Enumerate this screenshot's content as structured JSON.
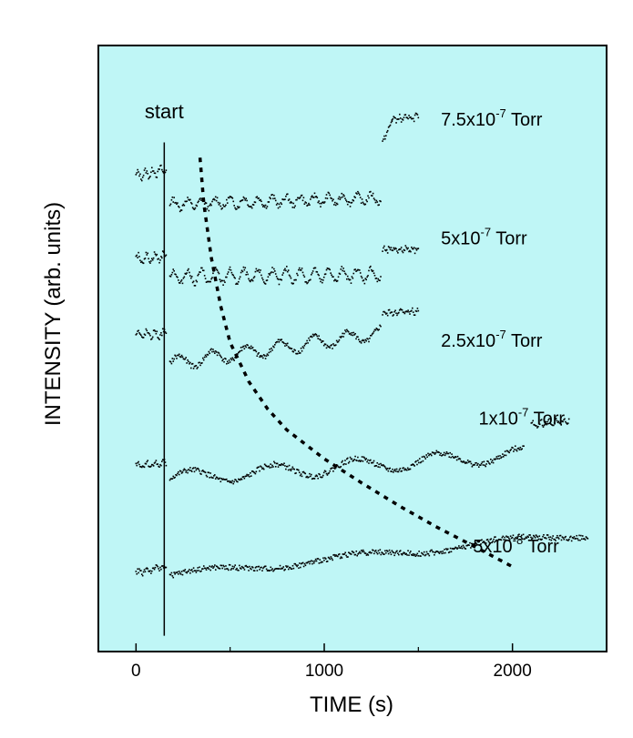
{
  "chart_data": {
    "type": "scatter",
    "title": "",
    "xlabel": "TIME (s)",
    "ylabel": "INTENSITY (arb. units)",
    "xlim": [
      -200,
      2500
    ],
    "ylim": [
      0,
      100
    ],
    "xticks": [
      0,
      1000,
      2000
    ],
    "y_tick_labels": false,
    "grid": false,
    "background_color": "#bff6f6",
    "start_annotation": {
      "label": "start",
      "x": 150
    },
    "decay_curve": {
      "style": "dashed",
      "points": [
        [
          340,
          81.5
        ],
        [
          360,
          74
        ],
        [
          400,
          65
        ],
        [
          450,
          57
        ],
        [
          500,
          51
        ],
        [
          600,
          44.5
        ],
        [
          700,
          40
        ],
        [
          800,
          36.6
        ],
        [
          1000,
          31.8
        ],
        [
          1200,
          27.8
        ],
        [
          1400,
          24
        ],
        [
          1600,
          20.5
        ],
        [
          1800,
          17.3
        ],
        [
          2000,
          14
        ]
      ]
    },
    "series": [
      {
        "label": {
          "mantissa": "7.5x10",
          "exponent": "-7",
          "unit": " Torr"
        },
        "segments": [
          {
            "x": [
              0,
              160
            ],
            "y": [
              78.5,
              79.5
            ],
            "osc_amp": 0.6,
            "osc_period": 40
          },
          {
            "x": [
              180,
              1300
            ],
            "y": [
              73.8,
              74.8
            ],
            "osc_amp": 0.8,
            "osc_period": 75
          },
          {
            "x": [
              1310,
              1360
            ],
            "y": [
              84,
              87.5
            ]
          },
          {
            "x": [
              1360,
              1500
            ],
            "y": [
              87.8,
              88.2
            ],
            "osc_amp": 0.4,
            "osc_period": 30
          }
        ]
      },
      {
        "label": {
          "mantissa": "5x10",
          "exponent": "-7",
          "unit": " Torr"
        },
        "segments": [
          {
            "x": [
              0,
              160
            ],
            "y": [
              64.8,
              65.2
            ],
            "osc_amp": 0.6,
            "osc_period": 45
          },
          {
            "x": [
              180,
              1300
            ],
            "y": [
              61.8,
              62.2
            ],
            "osc_amp": 1.1,
            "osc_period": 75
          },
          {
            "x": [
              1310,
              1500
            ],
            "y": [
              66.2,
              66.5
            ],
            "osc_amp": 0.4,
            "osc_period": 30
          }
        ]
      },
      {
        "label": {
          "mantissa": "2.5x10",
          "exponent": "-7",
          "unit": " Torr"
        },
        "segments": [
          {
            "x": [
              0,
              160
            ],
            "y": [
              52.2,
              52.4
            ],
            "osc_amp": 0.6,
            "osc_period": 45
          },
          {
            "x": [
              180,
              1300
            ],
            "y": [
              47.5,
              52.5
            ],
            "osc_amp": 1.1,
            "osc_period": 180
          },
          {
            "x": [
              1310,
              1500
            ],
            "y": [
              55.8,
              56.2
            ],
            "osc_amp": 0.4,
            "osc_period": 30
          }
        ]
      },
      {
        "label": {
          "mantissa": "1x10",
          "exponent": "-7",
          "unit": " Torr"
        },
        "segments": [
          {
            "x": [
              0,
              160
            ],
            "y": [
              30.8,
              31
            ],
            "osc_amp": 0.4,
            "osc_period": 45
          },
          {
            "x": [
              180,
              2060
            ],
            "y": [
              28.5,
              32.5
            ],
            "osc_amp": 1.2,
            "osc_period": 440
          },
          {
            "x": [
              2100,
              2300
            ],
            "y": [
              37.5,
              38
            ],
            "osc_amp": 0.4,
            "osc_period": 40
          }
        ]
      },
      {
        "label": {
          "mantissa": "5x10",
          "exponent": "-8",
          "unit": " Torr"
        },
        "segments": [
          {
            "x": [
              0,
              160
            ],
            "y": [
              13,
              14
            ],
            "osc_amp": 0.3,
            "osc_period": 45
          },
          {
            "x": [
              180,
              2400
            ],
            "y": [
              12.5,
              19.5
            ],
            "osc_amp": 0.6,
            "osc_period": 800
          }
        ]
      }
    ]
  }
}
